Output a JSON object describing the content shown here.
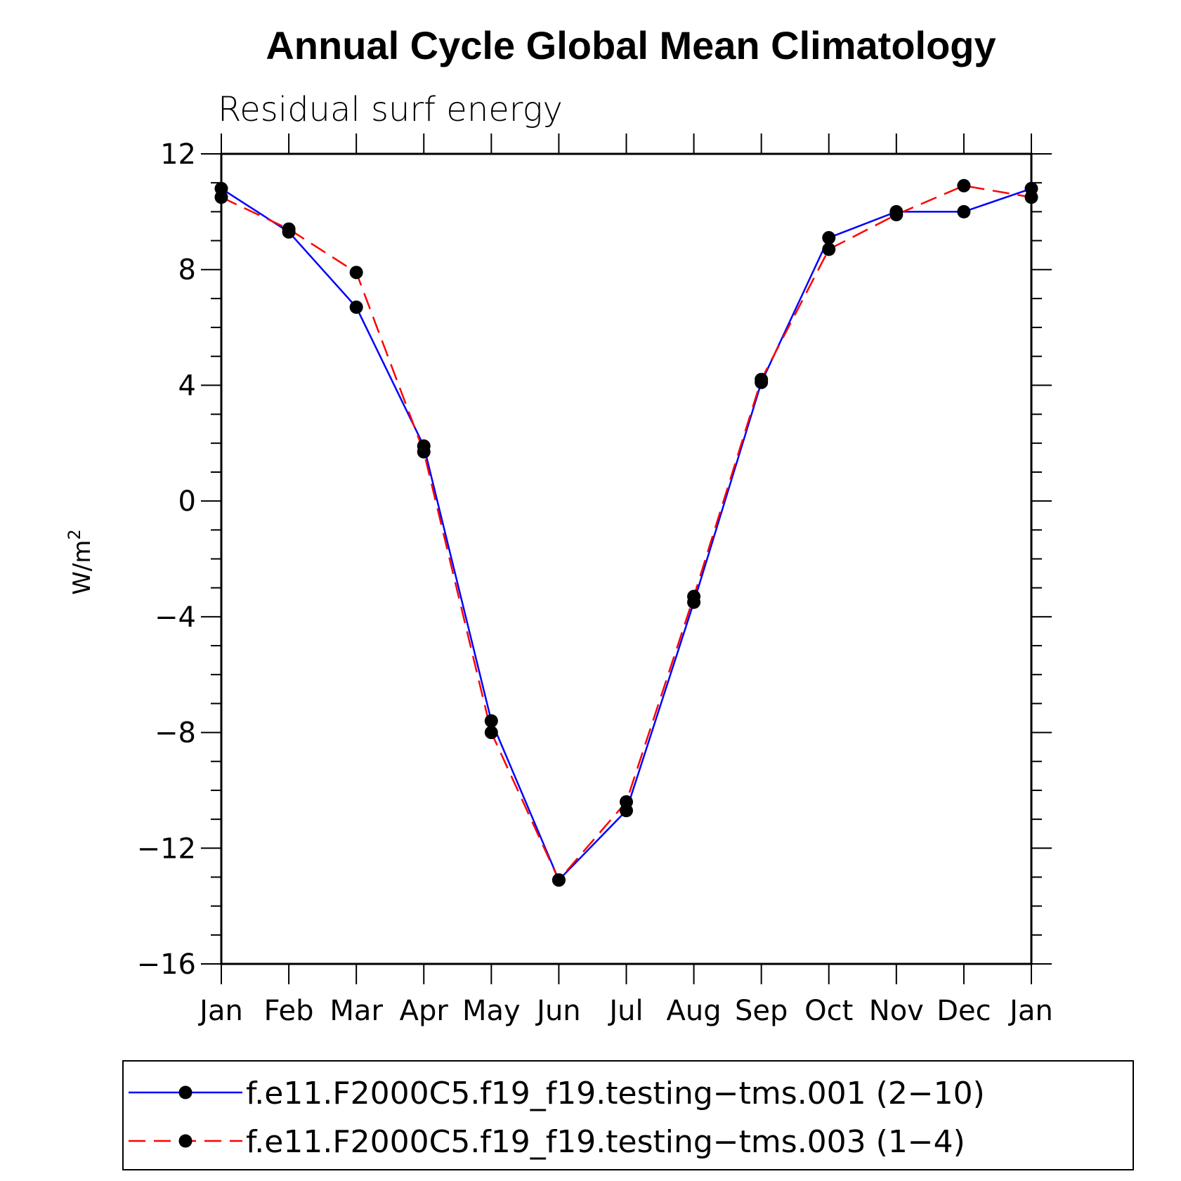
{
  "chart_data": {
    "type": "line",
    "title": "Annual Cycle Global Mean Climatology",
    "subtitle": "Residual surf energy",
    "ylabel": "W/m",
    "ylabel_superscript": "2",
    "xlabel": "",
    "ylim": [
      -16,
      12
    ],
    "yticks": [
      12,
      8,
      4,
      0,
      -4,
      -8,
      -12,
      -16
    ],
    "ytick_labels": [
      "12",
      "8",
      "4",
      "0",
      "−4",
      "−8",
      "−12",
      "−16"
    ],
    "categories": [
      "Jan",
      "Feb",
      "Mar",
      "Apr",
      "May",
      "Jun",
      "Jul",
      "Aug",
      "Sep",
      "Oct",
      "Nov",
      "Dec",
      "Jan"
    ],
    "grid": false,
    "legend_position": "bottom",
    "series": [
      {
        "name": "f.e11.F2000C5.f19_f19.testing−tms.001 (2−10)",
        "color": "#0000ff",
        "style": "solid",
        "marker": "circle",
        "values": [
          10.8,
          9.3,
          6.7,
          1.9,
          -7.6,
          -13.1,
          -10.7,
          -3.5,
          4.1,
          9.1,
          10.0,
          10.0,
          10.8
        ]
      },
      {
        "name": "f.e11.F2000C5.f19_f19.testing−tms.003 (1−4)",
        "color": "#ff0000",
        "style": "dashed",
        "marker": "circle",
        "values": [
          10.5,
          9.4,
          7.9,
          1.7,
          -8.0,
          -13.1,
          -10.4,
          -3.3,
          4.2,
          8.7,
          9.9,
          10.9,
          10.5
        ]
      }
    ]
  }
}
